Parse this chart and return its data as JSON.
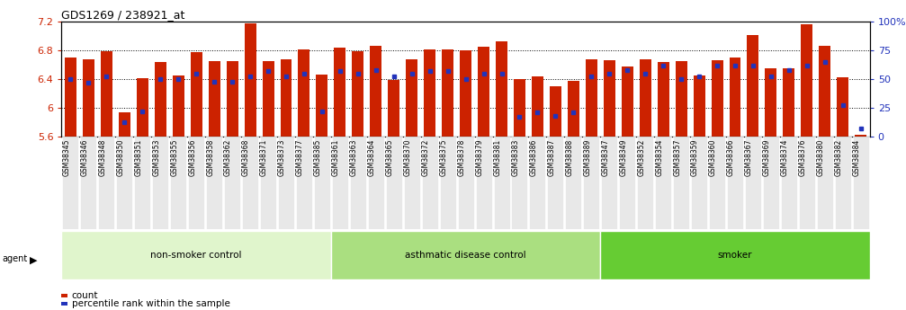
{
  "title": "GDS1269 / 238921_at",
  "ylim": [
    5.6,
    7.2
  ],
  "yticks_left": [
    5.6,
    6.0,
    6.4,
    6.8,
    7.2
  ],
  "ytick_labels_left": [
    "5.6",
    "6",
    "6.4",
    "6.8",
    "7.2"
  ],
  "yticks_right": [
    0,
    25,
    50,
    75,
    100
  ],
  "ytick_labels_right": [
    "0",
    "25",
    "50",
    "75",
    "100%"
  ],
  "samples": [
    "GSM38345",
    "GSM38346",
    "GSM38348",
    "GSM38350",
    "GSM38351",
    "GSM38353",
    "GSM38355",
    "GSM38356",
    "GSM38358",
    "GSM38362",
    "GSM38368",
    "GSM38371",
    "GSM38373",
    "GSM38377",
    "GSM38385",
    "GSM38361",
    "GSM38363",
    "GSM38364",
    "GSM38365",
    "GSM38370",
    "GSM38372",
    "GSM38375",
    "GSM38378",
    "GSM38379",
    "GSM38381",
    "GSM38383",
    "GSM38386",
    "GSM38387",
    "GSM38388",
    "GSM38389",
    "GSM38347",
    "GSM38349",
    "GSM38352",
    "GSM38354",
    "GSM38357",
    "GSM38359",
    "GSM38360",
    "GSM38366",
    "GSM38367",
    "GSM38369",
    "GSM38374",
    "GSM38376",
    "GSM38380",
    "GSM38382",
    "GSM38384"
  ],
  "bar_heights": [
    6.7,
    6.68,
    6.79,
    5.93,
    6.41,
    6.64,
    6.45,
    6.77,
    6.65,
    6.65,
    7.18,
    6.65,
    6.68,
    6.81,
    6.46,
    6.84,
    6.79,
    6.86,
    6.39,
    6.68,
    6.81,
    6.81,
    6.8,
    6.85,
    6.93,
    6.4,
    6.44,
    6.3,
    6.38,
    6.68,
    6.66,
    6.58,
    6.67,
    6.64,
    6.65,
    6.45,
    6.66,
    6.7,
    7.02,
    6.55,
    6.55,
    7.17,
    6.86,
    6.42,
    5.62
  ],
  "percentile_rank": [
    50,
    47,
    52,
    12,
    22,
    50,
    50,
    55,
    48,
    48,
    52,
    57,
    52,
    55,
    22,
    57,
    55,
    58,
    52,
    55,
    57,
    57,
    50,
    55,
    55,
    17,
    21,
    18,
    21,
    52,
    55,
    58,
    55,
    62,
    50,
    52,
    62,
    62,
    62,
    52,
    58,
    62,
    65,
    27,
    7
  ],
  "groups": [
    {
      "label": "non-smoker control",
      "start": 0,
      "end": 15,
      "color": "#e0f5cc"
    },
    {
      "label": "asthmatic disease control",
      "start": 15,
      "end": 30,
      "color": "#aadf80"
    },
    {
      "label": "smoker",
      "start": 30,
      "end": 45,
      "color": "#66cc33"
    }
  ],
  "bar_color": "#cc2200",
  "dot_color": "#2233bb",
  "tick_color_left": "#cc2200",
  "tick_color_right": "#2233bb",
  "xtick_bg": "#e8e8e8"
}
